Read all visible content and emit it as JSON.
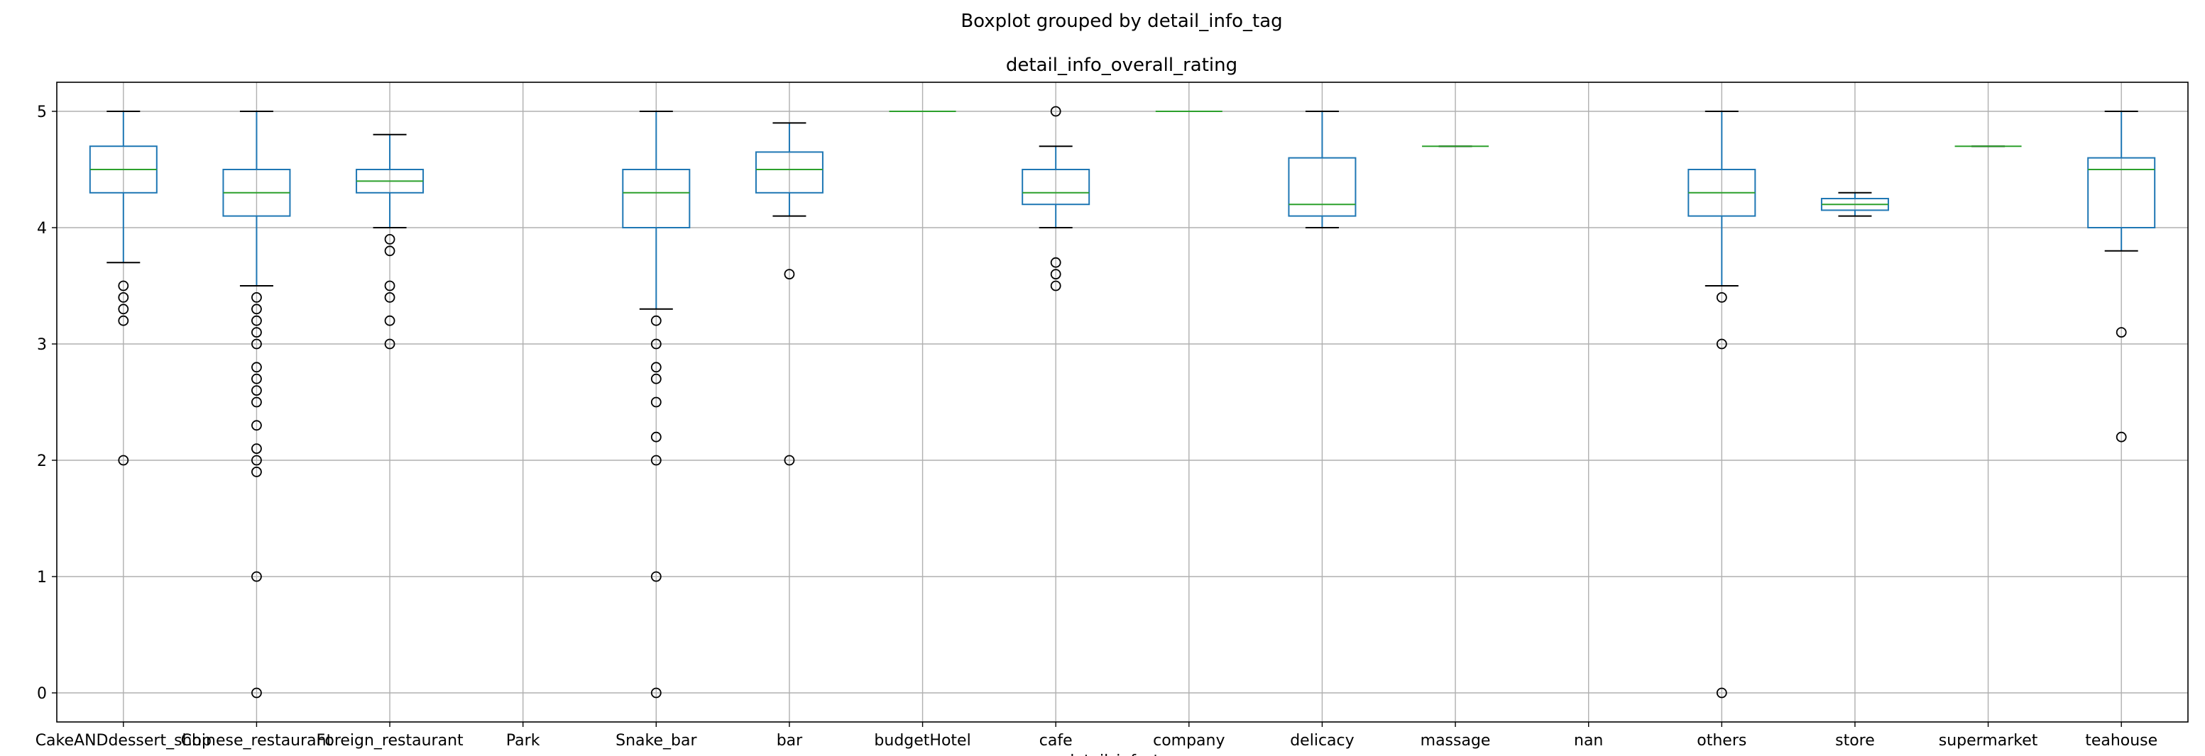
{
  "chart_data": {
    "type": "boxplot",
    "suptitle": "Boxplot grouped by detail_info_tag",
    "title": "detail_info_overall_rating",
    "xlabel": "detail_info_tag",
    "ylabel": "",
    "ylim": [
      -0.25,
      5.25
    ],
    "yticks": [
      0,
      1,
      2,
      3,
      4,
      5
    ],
    "grid": true,
    "colors": {
      "box": "#1f77b4",
      "median": "#2ca02c",
      "cap": "#000000",
      "grid": "#b0b0b0"
    },
    "categories": [
      "CakeANDdessert_shop",
      "Chinese_restaurant",
      "Foreign_restaurant",
      "Park",
      "Snake_bar",
      "bar",
      "budgetHotel",
      "cafe",
      "company",
      "delicacy",
      "massage",
      "nan",
      "others",
      "store",
      "supermarket",
      "teahouse"
    ],
    "boxes": [
      {
        "whislo": 3.7,
        "q1": 4.3,
        "med": 4.5,
        "q3": 4.7,
        "whishi": 5.0,
        "fliers": [
          3.5,
          3.4,
          3.3,
          3.2,
          2.0
        ]
      },
      {
        "whislo": 3.5,
        "q1": 4.1,
        "med": 4.3,
        "q3": 4.5,
        "whishi": 5.0,
        "fliers": [
          3.4,
          3.3,
          3.2,
          3.1,
          3.0,
          2.8,
          2.7,
          2.6,
          2.5,
          2.3,
          2.1,
          2.0,
          1.9,
          1.0,
          0.0
        ]
      },
      {
        "whislo": 4.0,
        "q1": 4.3,
        "med": 4.4,
        "q3": 4.5,
        "whishi": 4.8,
        "fliers": [
          3.9,
          3.8,
          3.5,
          3.4,
          3.2,
          3.0
        ]
      },
      null,
      {
        "whislo": 3.3,
        "q1": 4.0,
        "med": 4.3,
        "q3": 4.5,
        "whishi": 5.0,
        "fliers": [
          3.2,
          3.0,
          2.8,
          2.7,
          2.5,
          2.2,
          2.0,
          1.0,
          0.0
        ]
      },
      {
        "whislo": 4.1,
        "q1": 4.3,
        "med": 4.5,
        "q3": 4.65,
        "whishi": 4.9,
        "fliers": [
          3.6,
          2.0
        ]
      },
      {
        "whislo": 5.0,
        "q1": 5.0,
        "med": 5.0,
        "q3": 5.0,
        "whishi": 5.0,
        "fliers": []
      },
      {
        "whislo": 4.0,
        "q1": 4.2,
        "med": 4.3,
        "q3": 4.5,
        "whishi": 4.7,
        "fliers": [
          5.0,
          3.7,
          3.6,
          3.5
        ]
      },
      {
        "whislo": 5.0,
        "q1": 5.0,
        "med": 5.0,
        "q3": 5.0,
        "whishi": 5.0,
        "fliers": []
      },
      {
        "whislo": 4.0,
        "q1": 4.1,
        "med": 4.2,
        "q3": 4.6,
        "whishi": 5.0,
        "fliers": []
      },
      {
        "whislo": 4.7,
        "q1": 4.7,
        "med": 4.7,
        "q3": 4.7,
        "whishi": 4.7,
        "fliers": []
      },
      null,
      {
        "whislo": 3.5,
        "q1": 4.1,
        "med": 4.3,
        "q3": 4.5,
        "whishi": 5.0,
        "fliers": [
          3.4,
          3.0,
          0.0
        ]
      },
      {
        "whislo": 4.1,
        "q1": 4.15,
        "med": 4.2,
        "q3": 4.25,
        "whishi": 4.3,
        "fliers": []
      },
      {
        "whislo": 4.7,
        "q1": 4.7,
        "med": 4.7,
        "q3": 4.7,
        "whishi": 4.7,
        "fliers": []
      },
      {
        "whislo": 3.8,
        "q1": 4.0,
        "med": 4.5,
        "q3": 4.6,
        "whishi": 5.0,
        "fliers": [
          3.1,
          2.2
        ]
      }
    ]
  }
}
